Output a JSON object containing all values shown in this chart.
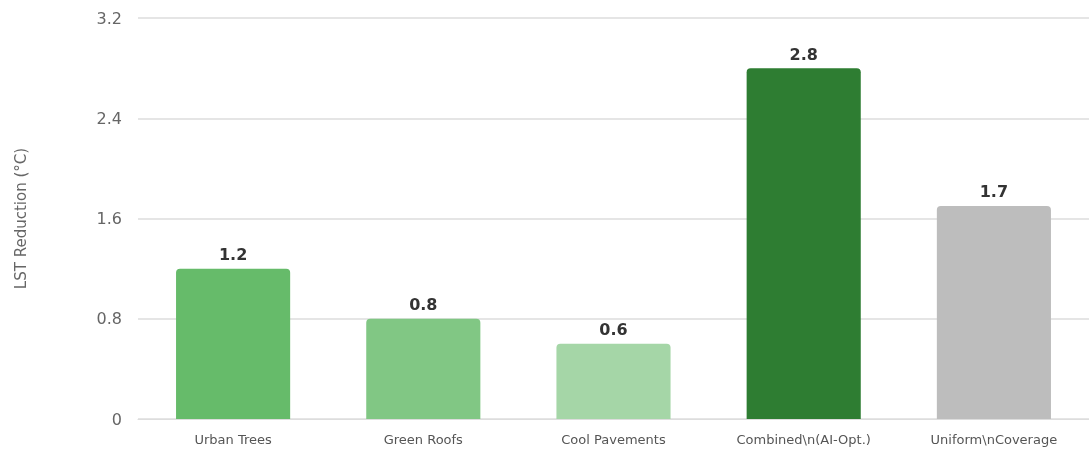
{
  "chart_data": {
    "type": "bar",
    "ylabel": "LST Reduction (°C)",
    "categories": [
      "Urban Trees",
      "Green Roofs",
      "Cool Pavements",
      "Combined\\n(AI-Opt.)",
      "Uniform\\nCoverage"
    ],
    "values": [
      1.2,
      0.8,
      0.6,
      2.8,
      1.7
    ],
    "colors": [
      "#66bb6a",
      "#81c784",
      "#a5d6a7",
      "#2e7d32",
      "#bdbdbd"
    ],
    "ylim": [
      0,
      3.2
    ],
    "yticks": [
      0,
      0.8,
      1.6,
      2.4,
      3.2
    ],
    "grid": "y",
    "data_labels": true
  }
}
